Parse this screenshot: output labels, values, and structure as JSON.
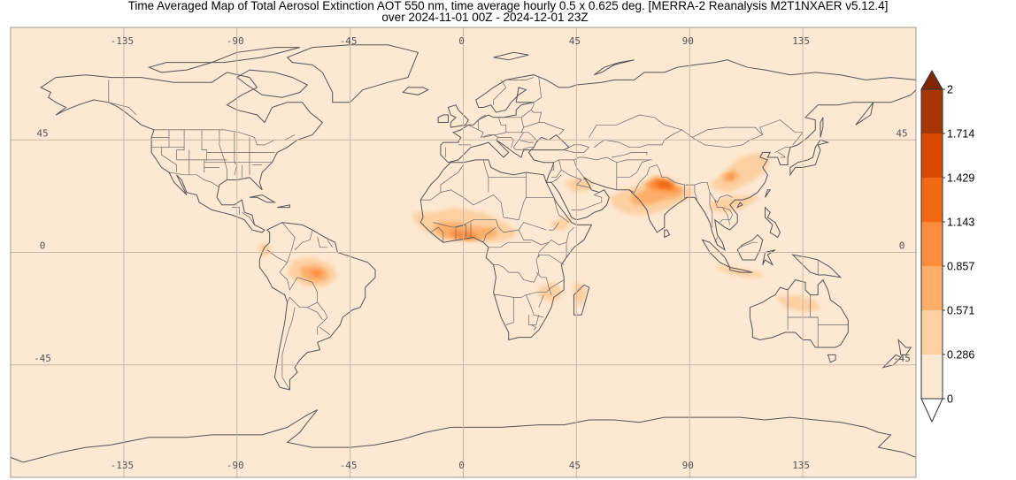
{
  "title": {
    "line1": "Time Averaged Map of Total Aerosol Extinction AOT 550 nm, time average hourly 0.5 x 0.625 deg. [MERRA-2 Reanalysis M2T1NXAER v5.12.4]",
    "line2": "over 2024-11-01 00Z - 2024-12-01 23Z"
  },
  "chart_data": {
    "type": "heatmap",
    "title": "Time Averaged Map of Total Aerosol Extinction AOT 550 nm, time average hourly 0.5 x 0.625 deg. [MERRA-2 Reanalysis M2T1NXAER v5.12.4]",
    "subtitle": "over 2024-11-01 00Z - 2024-12-01 23Z",
    "projection": "equirectangular",
    "xlim": [
      -180,
      180
    ],
    "ylim": [
      -90,
      90
    ],
    "grid": true,
    "lon_ticks": [
      "-135",
      "-90",
      "-45",
      "0",
      "45",
      "90",
      "135"
    ],
    "lon_tick_values": [
      -135,
      -90,
      -45,
      0,
      45,
      90,
      135
    ],
    "lat_ticks": [
      "45",
      "0",
      "-45"
    ],
    "lat_tick_values": [
      45,
      0,
      -45
    ],
    "colorbar": {
      "labels": [
        "2",
        "1.714",
        "1.429",
        "1.143",
        "0.857",
        "0.571",
        "0.286",
        "0"
      ],
      "levels": [
        0,
        0.286,
        0.571,
        0.857,
        1.143,
        1.429,
        1.714,
        2
      ],
      "colors": [
        "#fde8d3",
        "#fdd0a2",
        "#fdae6b",
        "#fd8d3c",
        "#f16913",
        "#d94801",
        "#a63603"
      ],
      "under_color": "#ffffff",
      "over_color": "#7f2704",
      "placement": "right"
    }
  }
}
